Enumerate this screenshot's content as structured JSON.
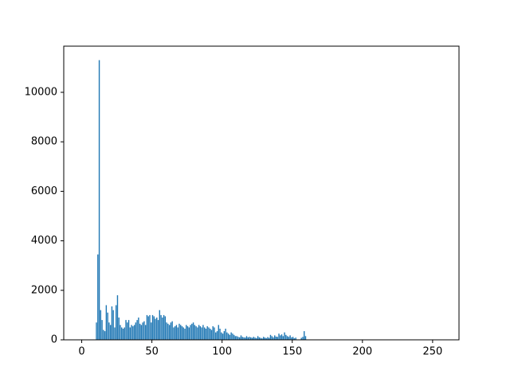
{
  "chart_data": {
    "type": "histogram",
    "color": "#1f77b4",
    "bins": [
      0,
      1,
      2,
      3,
      4,
      5,
      6,
      7,
      8,
      9,
      10,
      11,
      12,
      13,
      14,
      15,
      16,
      17,
      18,
      19,
      20,
      21,
      22,
      23,
      24,
      25,
      26,
      27,
      28,
      29,
      30,
      31,
      32,
      33,
      34,
      35,
      36,
      37,
      38,
      39,
      40,
      41,
      42,
      43,
      44,
      45,
      46,
      47,
      48,
      49,
      50,
      51,
      52,
      53,
      54,
      55,
      56,
      57,
      58,
      59,
      60,
      61,
      62,
      63,
      64,
      65,
      66,
      67,
      68,
      69,
      70,
      71,
      72,
      73,
      74,
      75,
      76,
      77,
      78,
      79,
      80,
      81,
      82,
      83,
      84,
      85,
      86,
      87,
      88,
      89,
      90,
      91,
      92,
      93,
      94,
      95,
      96,
      97,
      98,
      99,
      100,
      101,
      102,
      103,
      104,
      105,
      106,
      107,
      108,
      109,
      110,
      111,
      112,
      113,
      114,
      115,
      116,
      117,
      118,
      119,
      120,
      121,
      122,
      123,
      124,
      125,
      126,
      127,
      128,
      129,
      130,
      131,
      132,
      133,
      134,
      135,
      136,
      137,
      138,
      139,
      140,
      141,
      142,
      143,
      144,
      145,
      146,
      147,
      148,
      149,
      150,
      151,
      152,
      153,
      154,
      155,
      156,
      157,
      158,
      159,
      160,
      161,
      162,
      163,
      164,
      165,
      166,
      167,
      168,
      169,
      170,
      171,
      172,
      173,
      174,
      175,
      176,
      177,
      178,
      179,
      180,
      181,
      182,
      183,
      184,
      185,
      186,
      187,
      188,
      189,
      190,
      191,
      192,
      193,
      194,
      195,
      196,
      197,
      198,
      199,
      200,
      201,
      202,
      203,
      204,
      205,
      206,
      207,
      208,
      209,
      210,
      211,
      212,
      213,
      214,
      215,
      216,
      217,
      218,
      219,
      220,
      221,
      222,
      223,
      224,
      225,
      226,
      227,
      228,
      229,
      230,
      231,
      232,
      233,
      234,
      235,
      236,
      237,
      238,
      239,
      240,
      241,
      242,
      243,
      244,
      245,
      246,
      247,
      248,
      249,
      250,
      251,
      252,
      253,
      254,
      255,
      256
    ],
    "values": [
      0,
      0,
      0,
      0,
      0,
      0,
      0,
      0,
      0,
      0,
      700,
      3450,
      11300,
      1200,
      800,
      400,
      350,
      1400,
      1100,
      700,
      600,
      1350,
      1200,
      500,
      1400,
      1800,
      900,
      600,
      500,
      450,
      500,
      800,
      700,
      800,
      500,
      600,
      550,
      600,
      700,
      800,
      900,
      650,
      600,
      700,
      750,
      600,
      1000,
      950,
      1000,
      700,
      1000,
      950,
      850,
      900,
      800,
      1200,
      1000,
      900,
      1000,
      950,
      700,
      650,
      600,
      700,
      750,
      500,
      550,
      600,
      500,
      650,
      600,
      550,
      500,
      450,
      600,
      550,
      500,
      600,
      650,
      700,
      600,
      550,
      500,
      600,
      550,
      500,
      600,
      500,
      450,
      550,
      500,
      450,
      400,
      550,
      500,
      300,
      350,
      600,
      450,
      300,
      250,
      350,
      450,
      300,
      250,
      200,
      300,
      250,
      200,
      150,
      150,
      120,
      100,
      180,
      120,
      100,
      90,
      150,
      100,
      120,
      100,
      80,
      120,
      90,
      70,
      150,
      100,
      80,
      60,
      120,
      90,
      70,
      110,
      80,
      200,
      150,
      100,
      180,
      130,
      120,
      250,
      180,
      220,
      150,
      300,
      200,
      150,
      120,
      180,
      100,
      120,
      60,
      90,
      0,
      0,
      0,
      80,
      120,
      350,
      150,
      0,
      0,
      0,
      0,
      0,
      0,
      0,
      0,
      0,
      0,
      0,
      0,
      0,
      0,
      0,
      0,
      0,
      0,
      0,
      0,
      0,
      0,
      0,
      0,
      0,
      0,
      0,
      0,
      0,
      0,
      0,
      0,
      0,
      0,
      0,
      0,
      0,
      0,
      0,
      0,
      0,
      0,
      0,
      0,
      0,
      0,
      0,
      0,
      0,
      0,
      0,
      0,
      0,
      0,
      0,
      0,
      0,
      0,
      0,
      0,
      0,
      0,
      0,
      0,
      0,
      0,
      0,
      0,
      0,
      0,
      0,
      0,
      0,
      0,
      0,
      0,
      0,
      0,
      0,
      0,
      0,
      0,
      0,
      0,
      0,
      0,
      0,
      0,
      0,
      0,
      0,
      0,
      0,
      0,
      0,
      0
    ],
    "xlim": [
      -12.8,
      268.8
    ],
    "xticks": [
      0,
      50,
      100,
      150,
      200,
      250
    ],
    "ylim": [
      0,
      11865
    ],
    "yticks": [
      0,
      2000,
      4000,
      6000,
      8000,
      10000
    ]
  }
}
